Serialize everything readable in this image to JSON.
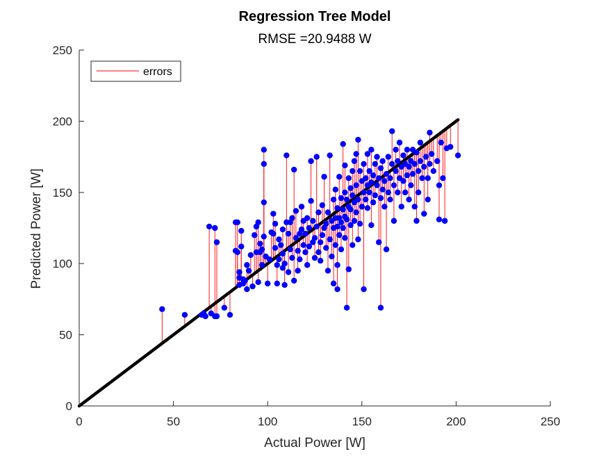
{
  "chart_data": {
    "type": "scatter",
    "title": "Regression Tree Model",
    "subtitle": "RMSE =20.9488 W",
    "xlabel": "Actual Power [W]",
    "ylabel": "Predicted Power [W]",
    "xlim": [
      0,
      250
    ],
    "ylim": [
      0,
      250
    ],
    "xticks": [
      "0",
      "50",
      "100",
      "150",
      "200",
      "250"
    ],
    "yticks": [
      "0",
      "50",
      "100",
      "150",
      "200",
      "250"
    ],
    "grid": false,
    "legend": {
      "position": "top-left",
      "entries": [
        "errors"
      ]
    },
    "colors": {
      "points": "#0000ff",
      "errors": "#ff0000",
      "reference_line": "#000000",
      "axes": "#262626"
    },
    "reference_line": {
      "x": [
        0,
        201
      ],
      "y": [
        0,
        201
      ]
    },
    "points": [
      [
        44,
        68
      ],
      [
        56,
        64
      ],
      [
        65,
        64
      ],
      [
        66,
        65
      ],
      [
        67,
        63
      ],
      [
        69,
        126
      ],
      [
        70,
        65
      ],
      [
        72,
        63
      ],
      [
        72,
        125
      ],
      [
        73,
        63
      ],
      [
        73,
        115
      ],
      [
        77,
        69
      ],
      [
        80,
        64
      ],
      [
        83,
        109
      ],
      [
        83,
        129
      ],
      [
        84,
        108
      ],
      [
        84,
        129
      ],
      [
        85,
        85
      ],
      [
        85,
        90
      ],
      [
        85,
        94
      ],
      [
        86,
        112
      ],
      [
        86,
        123
      ],
      [
        87,
        86
      ],
      [
        87,
        89
      ],
      [
        88,
        88
      ],
      [
        89,
        99
      ],
      [
        89,
        82
      ],
      [
        90,
        95
      ],
      [
        91,
        106
      ],
      [
        92,
        84
      ],
      [
        93,
        120
      ],
      [
        94,
        108
      ],
      [
        94,
        126
      ],
      [
        95,
        87
      ],
      [
        95,
        129
      ],
      [
        96,
        108
      ],
      [
        96,
        114
      ],
      [
        97,
        99
      ],
      [
        97,
        110
      ],
      [
        98,
        180
      ],
      [
        98,
        170
      ],
      [
        98,
        143
      ],
      [
        98,
        119
      ],
      [
        99,
        105
      ],
      [
        100,
        86
      ],
      [
        101,
        103
      ],
      [
        102,
        122
      ],
      [
        103,
        121
      ],
      [
        103,
        135
      ],
      [
        104,
        111
      ],
      [
        104,
        128
      ],
      [
        105,
        86
      ],
      [
        105,
        99
      ],
      [
        106,
        103
      ],
      [
        106,
        117
      ],
      [
        107,
        113
      ],
      [
        108,
        97
      ],
      [
        108,
        107
      ],
      [
        108,
        124
      ],
      [
        109,
        85
      ],
      [
        109,
        100
      ],
      [
        110,
        129
      ],
      [
        110,
        176
      ],
      [
        111,
        94
      ],
      [
        111,
        121
      ],
      [
        112,
        110
      ],
      [
        112,
        129
      ],
      [
        113,
        104
      ],
      [
        113,
        132
      ],
      [
        114,
        88
      ],
      [
        114,
        166
      ],
      [
        115,
        118
      ],
      [
        115,
        137
      ],
      [
        116,
        95
      ],
      [
        116,
        109
      ],
      [
        117,
        103
      ],
      [
        117,
        121
      ],
      [
        118,
        124
      ],
      [
        118,
        140
      ],
      [
        119,
        113
      ],
      [
        119,
        130
      ],
      [
        120,
        108
      ],
      [
        120,
        121
      ],
      [
        121,
        99
      ],
      [
        121,
        132
      ],
      [
        122,
        112
      ],
      [
        122,
        125
      ],
      [
        123,
        172
      ],
      [
        123,
        144
      ],
      [
        124,
        115
      ],
      [
        124,
        130
      ],
      [
        125,
        104
      ],
      [
        125,
        118
      ],
      [
        126,
        126
      ],
      [
        126,
        175
      ],
      [
        127,
        136
      ],
      [
        127,
        108
      ],
      [
        128,
        102
      ],
      [
        128,
        115
      ],
      [
        129,
        120
      ],
      [
        129,
        141
      ],
      [
        130,
        125
      ],
      [
        130,
        161
      ],
      [
        131,
        111
      ],
      [
        131,
        128
      ],
      [
        132,
        95
      ],
      [
        132,
        136
      ],
      [
        133,
        176
      ],
      [
        133,
        117
      ],
      [
        134,
        105
      ],
      [
        134,
        130
      ],
      [
        135,
        86
      ],
      [
        135,
        125
      ],
      [
        135,
        145
      ],
      [
        136,
        113
      ],
      [
        136,
        132
      ],
      [
        136,
        152
      ],
      [
        137,
        82
      ],
      [
        137,
        99
      ],
      [
        137,
        126
      ],
      [
        137,
        139
      ],
      [
        138,
        161
      ],
      [
        138,
        132
      ],
      [
        138,
        120
      ],
      [
        139,
        146
      ],
      [
        139,
        129
      ],
      [
        139,
        110
      ],
      [
        140,
        184
      ],
      [
        140,
        138
      ],
      [
        140,
        125
      ],
      [
        141,
        169
      ],
      [
        141,
        150
      ],
      [
        141,
        133
      ],
      [
        141,
        118
      ],
      [
        142,
        69
      ],
      [
        142,
        131
      ],
      [
        142,
        145
      ],
      [
        143,
        160
      ],
      [
        143,
        140
      ],
      [
        143,
        96
      ],
      [
        144,
        127
      ],
      [
        144,
        138
      ],
      [
        144,
        153
      ],
      [
        145,
        165
      ],
      [
        145,
        113
      ],
      [
        145,
        148
      ],
      [
        146,
        130
      ],
      [
        146,
        143
      ],
      [
        146,
        172
      ],
      [
        147,
        177
      ],
      [
        147,
        136
      ],
      [
        147,
        155
      ],
      [
        148,
        187
      ],
      [
        148,
        117
      ],
      [
        148,
        145
      ],
      [
        149,
        165
      ],
      [
        149,
        128
      ],
      [
        150,
        140
      ],
      [
        150,
        158
      ],
      [
        151,
        82
      ],
      [
        151,
        150
      ],
      [
        151,
        170
      ],
      [
        152,
        145
      ],
      [
        152,
        160
      ],
      [
        153,
        177
      ],
      [
        153,
        155
      ],
      [
        153,
        139
      ],
      [
        154,
        165
      ],
      [
        154,
        150
      ],
      [
        155,
        180
      ],
      [
        155,
        157
      ],
      [
        155,
        127
      ],
      [
        156,
        162
      ],
      [
        156,
        143
      ],
      [
        157,
        170
      ],
      [
        157,
        148
      ],
      [
        158,
        155
      ],
      [
        158,
        175
      ],
      [
        159,
        160
      ],
      [
        159,
        115
      ],
      [
        160,
        69
      ],
      [
        160,
        146
      ],
      [
        160,
        167
      ],
      [
        161,
        152
      ],
      [
        161,
        172
      ],
      [
        162,
        158
      ],
      [
        162,
        140
      ],
      [
        163,
        110
      ],
      [
        163,
        163
      ],
      [
        164,
        150
      ],
      [
        164,
        175
      ],
      [
        165,
        160
      ],
      [
        165,
        145
      ],
      [
        166,
        170
      ],
      [
        166,
        193
      ],
      [
        167,
        155
      ],
      [
        167,
        130
      ],
      [
        168,
        165
      ],
      [
        168,
        180
      ],
      [
        169,
        150
      ],
      [
        169,
        172
      ],
      [
        170,
        160
      ],
      [
        170,
        185
      ],
      [
        171,
        140
      ],
      [
        171,
        168
      ],
      [
        172,
        176
      ],
      [
        172,
        158
      ],
      [
        173,
        170
      ],
      [
        173,
        150
      ],
      [
        174,
        180
      ],
      [
        174,
        162
      ],
      [
        175,
        145
      ],
      [
        175,
        168
      ],
      [
        176,
        172
      ],
      [
        176,
        155
      ],
      [
        177,
        180
      ],
      [
        177,
        163
      ],
      [
        178,
        140
      ],
      [
        178,
        170
      ],
      [
        179,
        130
      ],
      [
        179,
        178
      ],
      [
        180,
        165
      ],
      [
        180,
        150
      ],
      [
        181,
        172
      ],
      [
        181,
        185
      ],
      [
        182,
        160
      ],
      [
        183,
        168
      ],
      [
        183,
        135
      ],
      [
        184,
        175
      ],
      [
        185,
        160
      ],
      [
        185,
        145
      ],
      [
        186,
        192
      ],
      [
        186,
        170
      ],
      [
        187,
        177
      ],
      [
        188,
        165
      ],
      [
        190,
        172
      ],
      [
        191,
        155
      ],
      [
        191,
        131
      ],
      [
        192,
        185
      ],
      [
        193,
        160
      ],
      [
        194,
        130
      ],
      [
        195,
        181
      ],
      [
        197,
        182
      ],
      [
        201,
        176
      ]
    ]
  }
}
